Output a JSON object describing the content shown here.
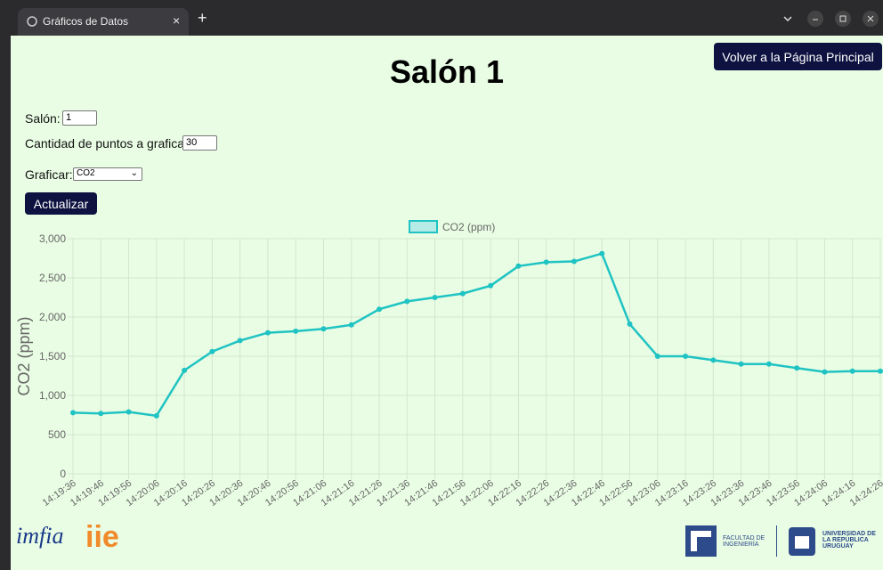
{
  "browser": {
    "tab_title": "Gráficos de Datos"
  },
  "page": {
    "heading": "Salón 1",
    "back_button": "Volver a la Página Principal",
    "form": {
      "room_label": "Salón:",
      "room_value": "1",
      "points_label": "Cantidad de puntos a graficar:",
      "points_value": "30",
      "plot_label": "Graficar:",
      "plot_value": "CO2",
      "update_button": "Actualizar"
    },
    "footer": {
      "logo1": "imfia",
      "logo2": "iie",
      "logo3": "FACULTAD DE INGENIERÍA",
      "logo4": "UNIVERSIDAD DE LA REPÚBLICA URUGUAY"
    }
  },
  "chart_data": {
    "type": "line",
    "y_label": "CO2 (ppm)",
    "grid": true,
    "legend": "top",
    "categories": [
      "14:19:36",
      "14:19:46",
      "14:19:56",
      "14:20:06",
      "14:20:16",
      "14:20:26",
      "14:20:36",
      "14:20:46",
      "14:20:56",
      "14:21:06",
      "14:21:16",
      "14:21:26",
      "14:21:36",
      "14:21:46",
      "14:21:56",
      "14:22:06",
      "14:22:16",
      "14:22:26",
      "14:22:36",
      "14:22:46",
      "14:22:56",
      "14:23:06",
      "14:23:16",
      "14:23:26",
      "14:23:36",
      "14:23:46",
      "14:23:56",
      "14:24:06",
      "14:24:16",
      "14:24:26"
    ],
    "series": [
      {
        "name": "CO2 (ppm)",
        "color": "#1fc3c3",
        "values": [
          780,
          770,
          790,
          740,
          1320,
          1560,
          1700,
          1800,
          1820,
          1850,
          1900,
          2100,
          2200,
          2250,
          2300,
          2400,
          2650,
          2700,
          2710,
          2810,
          1910,
          1500,
          1500,
          1450,
          1400,
          1400,
          1350,
          1300,
          1310,
          1310
        ]
      }
    ],
    "ylim": [
      0,
      3000
    ],
    "yticks": [
      0,
      500,
      {
        "value": 1000,
        "label": "1,000"
      },
      {
        "value": 1500,
        "label": "1,500"
      },
      {
        "value": 2000,
        "label": "2,000"
      },
      {
        "value": 2500,
        "label": "2,500"
      },
      {
        "value": 3000,
        "label": "3,000"
      }
    ]
  }
}
